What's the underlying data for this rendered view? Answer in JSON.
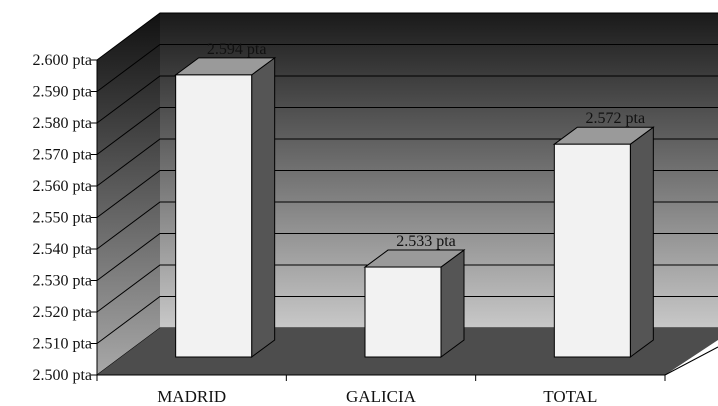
{
  "chart_data": {
    "type": "bar",
    "title": "",
    "xlabel": "",
    "ylabel": "",
    "categories": [
      "MADRID",
      "GALICIA",
      "TOTAL"
    ],
    "values": [
      2594,
      2533,
      2572
    ],
    "data_labels": [
      "2.594 pta",
      "2.533 pta",
      "2.572 pta"
    ],
    "ylim": [
      2500,
      2600
    ],
    "yticks": [
      2500,
      2510,
      2520,
      2530,
      2540,
      2550,
      2560,
      2570,
      2580,
      2590,
      2600
    ],
    "ytick_labels": [
      "2.500 pta",
      "2.510 pta",
      "2.520 pta",
      "2.530 pta",
      "2.540 pta",
      "2.550 pta",
      "2.560 pta",
      "2.570 pta",
      "2.580 pta",
      "2.590 pta",
      "2.600 pta"
    ],
    "grid": true,
    "legend": "none",
    "style": "3d",
    "colors": {
      "bar_front": "#f2f2f2",
      "bar_top": "#9a9a9a",
      "bar_side": "#555555",
      "floor": "#4d4d4d",
      "wall_top": "#1a1a1a",
      "wall_bottom": "#c8c8c8"
    }
  }
}
